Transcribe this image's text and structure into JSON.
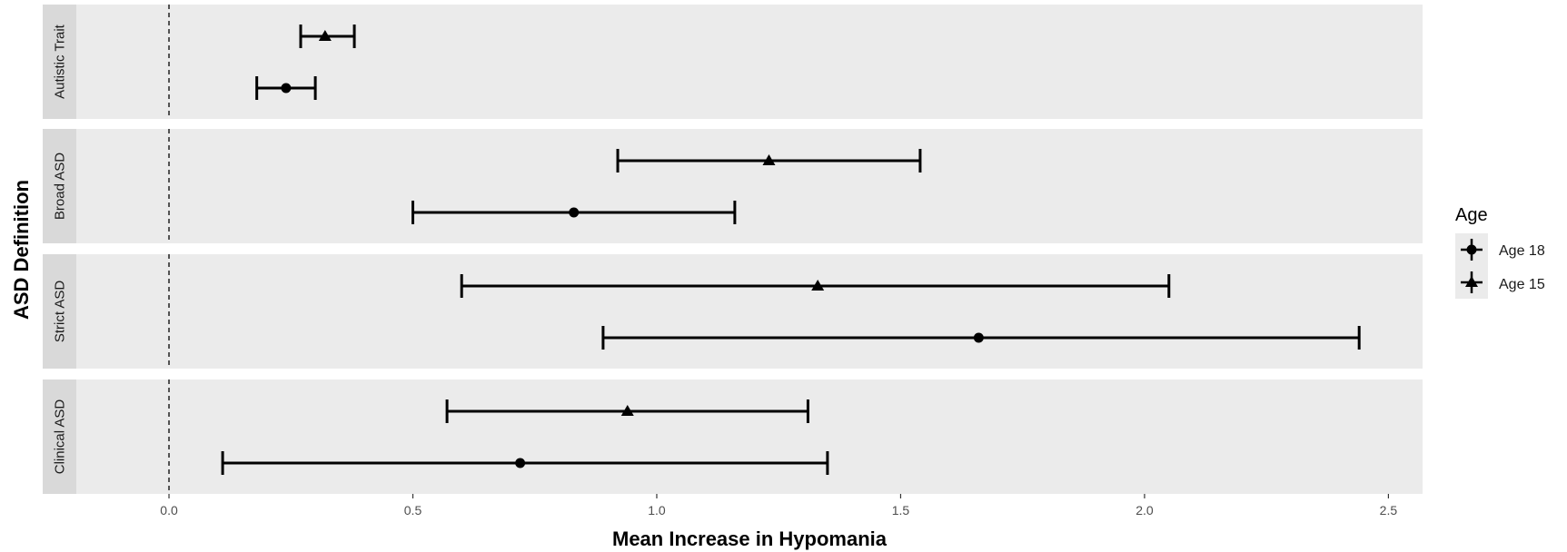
{
  "chart_data": {
    "type": "forest",
    "xlabel": "Mean Increase in Hypomania",
    "ylabel": "ASD Definition",
    "xlim": [
      -0.19,
      2.57
    ],
    "x_ticks": [
      0.0,
      0.5,
      1.0,
      1.5,
      2.0,
      2.5
    ],
    "x_tick_labels": [
      "0.0",
      "0.5",
      "1.0",
      "1.5",
      "2.0",
      "2.5"
    ],
    "reference_line": 0,
    "grid": false,
    "facet_order": [
      "Autistic Trait",
      "Broad ASD",
      "Strict ASD",
      "Clinical ASD"
    ],
    "legend": {
      "title": "Age",
      "position": "right",
      "entries": [
        {
          "label": "Age 18",
          "shape": "circle"
        },
        {
          "label": "Age 15",
          "shape": "triangle"
        }
      ]
    },
    "series": [
      {
        "name": "Age 15",
        "shape": "triangle",
        "points": [
          {
            "facet": "Autistic Trait",
            "estimate": 0.32,
            "lower": 0.27,
            "upper": 0.38
          },
          {
            "facet": "Broad ASD",
            "estimate": 1.23,
            "lower": 0.92,
            "upper": 1.54
          },
          {
            "facet": "Strict ASD",
            "estimate": 1.33,
            "lower": 0.6,
            "upper": 2.05
          },
          {
            "facet": "Clinical ASD",
            "estimate": 0.94,
            "lower": 0.57,
            "upper": 1.31
          }
        ]
      },
      {
        "name": "Age 18",
        "shape": "circle",
        "points": [
          {
            "facet": "Autistic Trait",
            "estimate": 0.24,
            "lower": 0.18,
            "upper": 0.3
          },
          {
            "facet": "Broad ASD",
            "estimate": 0.83,
            "lower": 0.5,
            "upper": 1.16
          },
          {
            "facet": "Strict ASD",
            "estimate": 1.66,
            "lower": 0.89,
            "upper": 2.44
          },
          {
            "facet": "Clinical ASD",
            "estimate": 0.72,
            "lower": 0.11,
            "upper": 1.35
          }
        ]
      }
    ],
    "colors": {
      "panel_background": "#ebebeb",
      "strip_background": "#d9d9d9",
      "marks": "#000000",
      "tick_text": "#4d4d4d"
    }
  }
}
